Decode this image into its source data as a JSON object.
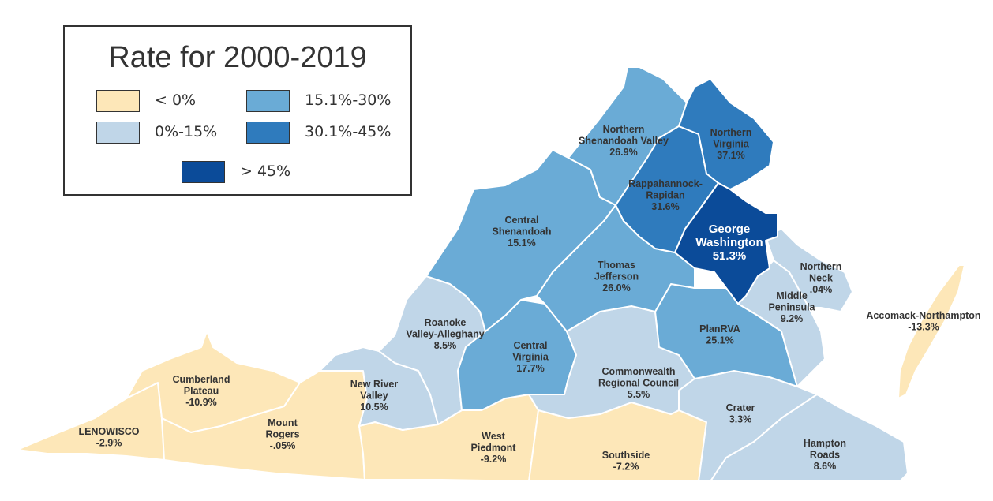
{
  "legend": {
    "title": "Rate for 2000-2019",
    "items": [
      {
        "label": "< 0%",
        "color": "#fde7b8"
      },
      {
        "label": "0%-15%",
        "color": "#c0d6e8"
      },
      {
        "label": "15.1%-30%",
        "color": "#6aabd6"
      },
      {
        "label": "30.1%-45%",
        "color": "#2f7bbd"
      },
      {
        "label": "> 45%",
        "color": "#0b4b99"
      }
    ]
  },
  "regions": [
    {
      "id": "lenowisco",
      "name": "LENOWISCO",
      "value": "-2.9%",
      "class": 0
    },
    {
      "id": "cumberland-plateau",
      "name": [
        "Cumberland",
        "Plateau"
      ],
      "value": "-10.9%",
      "class": 0
    },
    {
      "id": "mount-rogers",
      "name": [
        "Mount",
        "Rogers"
      ],
      "value": "-.05%",
      "class": 0
    },
    {
      "id": "west-piedmont",
      "name": [
        "West",
        "Piedmont"
      ],
      "value": "-9.2%",
      "class": 0
    },
    {
      "id": "southside",
      "name": [
        "Southside"
      ],
      "value": "-7.2%",
      "class": 0
    },
    {
      "id": "accomack-northampton",
      "name": [
        "Accomack-Northampton"
      ],
      "value": "-13.3%",
      "class": 0
    },
    {
      "id": "new-river-valley",
      "name": [
        "New River",
        "Valley"
      ],
      "value": "10.5%",
      "class": 1
    },
    {
      "id": "roanoke-valley-alleghany",
      "name": [
        "Roanoke",
        "Valley-Alleghany"
      ],
      "value": "8.5%",
      "class": 1
    },
    {
      "id": "commonwealth-regional-council",
      "name": [
        "Commonwealth",
        "Regional Council"
      ],
      "value": "5.5%",
      "class": 1
    },
    {
      "id": "crater",
      "name": [
        "Crater"
      ],
      "value": "3.3%",
      "class": 1
    },
    {
      "id": "hampton-roads",
      "name": [
        "Hampton",
        "Roads"
      ],
      "value": "8.6%",
      "class": 1
    },
    {
      "id": "middle-peninsula",
      "name": [
        "Middle",
        "Peninsula"
      ],
      "value": "9.2%",
      "class": 1
    },
    {
      "id": "northern-neck",
      "name": [
        "Northern",
        "Neck"
      ],
      "value": ".04%",
      "class": 1
    },
    {
      "id": "central-shenandoah",
      "name": [
        "Central",
        "Shenandoah"
      ],
      "value": "15.1%",
      "class": 2
    },
    {
      "id": "northern-shenandoah-valley",
      "name": [
        "Northern",
        "Shenandoah Valley"
      ],
      "value": "26.9%",
      "class": 2
    },
    {
      "id": "thomas-jefferson",
      "name": [
        "Thomas",
        "Jefferson"
      ],
      "value": "26.0%",
      "class": 2
    },
    {
      "id": "central-virginia",
      "name": [
        "Central",
        "Virginia"
      ],
      "value": "17.7%",
      "class": 2
    },
    {
      "id": "planrva",
      "name": [
        "PlanRVA"
      ],
      "value": "25.1%",
      "class": 2
    },
    {
      "id": "rappahannock-rapidan",
      "name": [
        "Rappahannock-",
        "Rapidan"
      ],
      "value": "31.6%",
      "class": 3
    },
    {
      "id": "northern-virginia",
      "name": [
        "Northern",
        "Virginia"
      ],
      "value": "37.1%",
      "class": 3
    },
    {
      "id": "george-washington",
      "name": [
        "George",
        "Washington"
      ],
      "value": "51.3%",
      "class": 4
    }
  ]
}
